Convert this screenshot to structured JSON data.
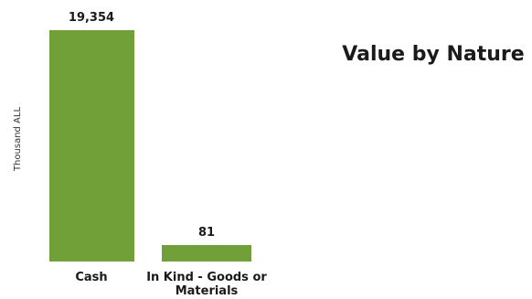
{
  "chart_data": {
    "type": "bar",
    "title": "Value by Nature",
    "ylabel": "Thousand ALL",
    "xlabel": "",
    "categories": [
      [
        "Cash"
      ],
      [
        "In Kind - Goods or",
        "Materials"
      ]
    ],
    "values": [
      19354,
      81
    ],
    "value_labels": [
      "19,354",
      "81"
    ],
    "ylim": [
      0,
      19354
    ],
    "bar_color": "#70a037",
    "grid": false,
    "legend": "none"
  }
}
